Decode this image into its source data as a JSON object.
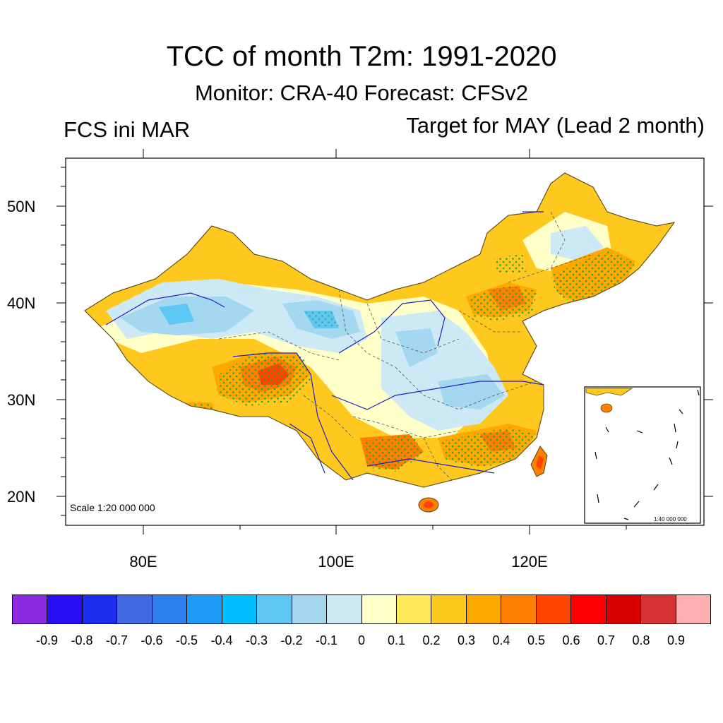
{
  "header": {
    "title": "TCC of month T2m: 1991-2020",
    "subtitle": "Monitor: CRA-40   Forecast: CFSv2",
    "left_label": "FCS ini MAR",
    "right_label": "Target for MAY (Lead 2 month)"
  },
  "map": {
    "region": "China",
    "lat_labels": [
      "50N",
      "40N",
      "30N",
      "20N"
    ],
    "lon_labels": [
      "80E",
      "100E",
      "120E"
    ],
    "scale_label": "Scale 1:20 000 000",
    "inset_scale_label": "1:40 000 000"
  },
  "colorbar": {
    "colors": [
      "#8a2be2",
      "#2a0cf5",
      "#1a2ef0",
      "#4169e1",
      "#2f7fef",
      "#1e9bf7",
      "#00bfff",
      "#5ec6f2",
      "#a3d8f0",
      "#cde9f6",
      "#ffffc8",
      "#ffe95a",
      "#ffc81e",
      "#ffa800",
      "#ff7f00",
      "#ff4500",
      "#ff0000",
      "#d80000",
      "#d83232",
      "#ffb0b0"
    ],
    "labels": [
      "-0.9",
      "-0.8",
      "-0.7",
      "-0.6",
      "-0.5",
      "-0.4",
      "-0.3",
      "-0.2",
      "-0.1",
      "0",
      "0.1",
      "0.2",
      "0.3",
      "0.4",
      "0.5",
      "0.6",
      "0.7",
      "0.8",
      "0.9"
    ]
  }
}
